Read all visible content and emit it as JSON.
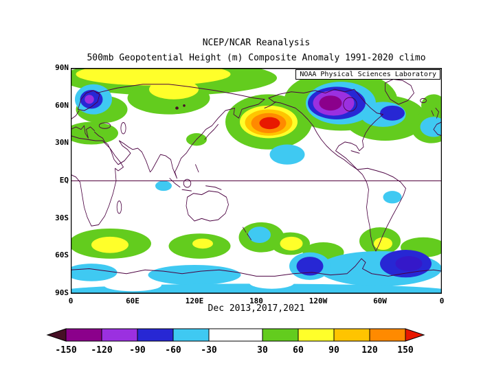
{
  "header": {
    "title_line1": "NCEP/NCAR Reanalysis",
    "title_line2": "500mb Geopotential Height (m) Composite Anomaly 1991-2020 climo"
  },
  "map": {
    "credit": "NOAA Physical Sciences Laboratory",
    "y_ticks": [
      "90N",
      "60N",
      "30N",
      "EQ",
      "30S",
      "60S",
      "90S"
    ],
    "x_ticks": [
      "0",
      "60E",
      "120E",
      "180",
      "120W",
      "60W",
      "0"
    ],
    "caption": "Dec 2013,2017,2021",
    "coastline_color": "#4a0040",
    "equator_color": "#50003c"
  },
  "colorbar": {
    "tick_labels": [
      "-150",
      "-120",
      "-90",
      "-60",
      "-30",
      "30",
      "60",
      "90",
      "120",
      "150"
    ],
    "arrow_left_color": "#471026",
    "arrow_right_color": "#e81800",
    "segments": [
      {
        "color": "#8b008b",
        "width": 52
      },
      {
        "color": "#9b30e0",
        "width": 52
      },
      {
        "color": "#2727d4",
        "width": 52
      },
      {
        "color": "#3fc9f2",
        "width": 52
      },
      {
        "color": "#ffffff",
        "width": 78
      },
      {
        "color": "#63cc1e",
        "width": 52
      },
      {
        "color": "#ffff2a",
        "width": 52
      },
      {
        "color": "#ffc400",
        "width": 52
      },
      {
        "color": "#ff8a00",
        "width": 52
      }
    ]
  },
  "chart_data": {
    "type": "heatmap",
    "variable": "500mb Geopotential Height Composite Anomaly",
    "units": "m",
    "climatology": "1991-2020",
    "composite_months": "Dec 2013,2017,2021",
    "source": "NCEP/NCAR Reanalysis",
    "lon_range": [
      0,
      360
    ],
    "lat_range": [
      -90,
      90
    ],
    "contour_levels": [
      -150,
      -120,
      -90,
      -60,
      -30,
      30,
      60,
      90,
      120,
      150
    ],
    "anomaly_centers": [
      {
        "region": "North Pacific (45N, 195E)",
        "value_m": 150
      },
      {
        "region": "Northern Canada (62N, 252E)",
        "value_m": -140
      },
      {
        "region": "Scandinavia (65N, 20E)",
        "value_m": -90
      },
      {
        "region": "Arctic Siberia band (85N, 80E)",
        "value_m": 75
      },
      {
        "region": "Weddell Sea / South Atlantic (66S, 328E)",
        "value_m": -100
      },
      {
        "region": "Amundsen Sea (68S, 232E)",
        "value_m": -65
      },
      {
        "region": "South Indian Ocean (51S, 38E)",
        "value_m": 65
      },
      {
        "region": "Southeast Pacific (50S, 214E)",
        "value_m": 65
      },
      {
        "region": "Patagonia (50S, 303E)",
        "value_m": 65
      },
      {
        "region": "Subtropical Central Pacific (21N, 210E)",
        "value_m": -35
      }
    ],
    "palette": {
      "green": "#63cc1e",
      "yellow": "#ffff2a",
      "amber": "#ffc400",
      "orange": "#ff8a00",
      "red": "#e81800",
      "cyan": "#3fc9f2",
      "blue": "#2727d4",
      "purple": "#9b30e0",
      "magenta": "#8b008b",
      "indigo": "#3518c9",
      "darkmaroon": "#471026",
      "white": "#ffffff"
    },
    "anomaly_blobs": [
      {
        "region": "arctic band",
        "color": "green",
        "lon": 95,
        "lat": 82,
        "rx": 105,
        "ry": 14
      },
      {
        "region": "siberia lobe",
        "color": "green",
        "lon": 95,
        "lat": 66,
        "rx": 40,
        "ry": 13
      },
      {
        "region": "arctic band core",
        "color": "yellow",
        "lon": 80,
        "lat": 85,
        "rx": 75,
        "ry": 9
      },
      {
        "region": "siberia lobe core",
        "color": "yellow",
        "lon": 100,
        "lat": 73,
        "rx": 24,
        "ry": 8
      },
      {
        "region": "europe north africa",
        "color": "green",
        "lon": 20,
        "lat": 38,
        "rx": 26,
        "ry": 9
      },
      {
        "region": "scandinavia surround",
        "color": "green",
        "lon": 30,
        "lat": 57,
        "rx": 25,
        "ry": 11
      },
      {
        "region": "east asia",
        "color": "green",
        "lon": 122,
        "lat": 33,
        "rx": 10,
        "ry": 5
      },
      {
        "region": "north america outer",
        "color": "green",
        "lon": 262,
        "lat": 64,
        "rx": 55,
        "ry": 24
      },
      {
        "region": "north atlantic",
        "color": "green",
        "lon": 305,
        "lat": 50,
        "rx": 40,
        "ry": 18
      },
      {
        "region": "europe west edge",
        "color": "green",
        "lon": 350,
        "lat": 43,
        "rx": 20,
        "ry": 13
      },
      {
        "region": "ne atlantic edge",
        "color": "green",
        "lon": 352,
        "lat": 60,
        "rx": 12,
        "ry": 9
      },
      {
        "region": "north pacific outer",
        "color": "green",
        "lon": 192,
        "lat": 47,
        "rx": 42,
        "ry": 22
      },
      {
        "region": "north pacific +60",
        "color": "yellow",
        "lon": 192,
        "lat": 47,
        "rx": 28,
        "ry": 13
      },
      {
        "region": "north pacific +90",
        "color": "amber",
        "lon": 192,
        "lat": 46.5,
        "rx": 23,
        "ry": 10.5
      },
      {
        "region": "north pacific +120",
        "color": "orange",
        "lon": 192,
        "lat": 46,
        "rx": 17,
        "ry": 8
      },
      {
        "region": "north pacific core",
        "color": "red",
        "lon": 193,
        "lat": 46,
        "rx": 10,
        "ry": 4.8
      },
      {
        "region": "scandinavia -30",
        "color": "cyan",
        "lon": 22,
        "lat": 65,
        "rx": 18,
        "ry": 12
      },
      {
        "region": "scandinavia -60",
        "color": "blue",
        "lon": 20,
        "lat": 65,
        "rx": 11,
        "ry": 7.5
      },
      {
        "region": "scandinavia core",
        "color": "purple",
        "lon": 18,
        "lat": 65,
        "rx": 4.5,
        "ry": 3.5
      },
      {
        "region": "canada -30",
        "color": "cyan",
        "lon": 262,
        "lat": 62,
        "rx": 34,
        "ry": 17
      },
      {
        "region": "greenland lobe -30",
        "color": "cyan",
        "lon": 303,
        "lat": 53,
        "rx": 22,
        "ry": 10
      },
      {
        "region": "greenland lobe -60",
        "color": "blue",
        "lon": 312,
        "lat": 54,
        "rx": 12,
        "ry": 6
      },
      {
        "region": "canada -60",
        "color": "blue",
        "lon": 258,
        "lat": 62,
        "rx": 28,
        "ry": 13
      },
      {
        "region": "canada -90",
        "color": "purple",
        "lon": 255,
        "lat": 62,
        "rx": 20,
        "ry": 10
      },
      {
        "region": "canada core",
        "color": "magenta",
        "lon": 252,
        "lat": 62,
        "rx": 11,
        "ry": 6
      },
      {
        "region": "siberia speck",
        "color": "darkmaroon",
        "lon": 103,
        "lat": 58,
        "rx": 1.6,
        "ry": 1.2
      },
      {
        "region": "siberia speck",
        "color": "darkmaroon",
        "lon": 110,
        "lat": 60,
        "rx": 1.2,
        "ry": 1
      },
      {
        "region": "subtropical pacific",
        "color": "cyan",
        "lon": 210,
        "lat": 21,
        "rx": 17,
        "ry": 8
      },
      {
        "region": "east atlantic",
        "color": "cyan",
        "lon": 352,
        "lat": 43,
        "rx": 13,
        "ry": 8
      },
      {
        "region": "indian ocean",
        "color": "cyan",
        "lon": 90,
        "lat": -4,
        "rx": 8,
        "ry": 4
      },
      {
        "region": "brazil",
        "color": "cyan",
        "lon": 312,
        "lat": -13,
        "rx": 9,
        "ry": 5
      },
      {
        "region": "south indian band",
        "color": "green",
        "lon": 38,
        "lat": -50,
        "rx": 40,
        "ry": 12
      },
      {
        "region": "south indian core",
        "color": "yellow",
        "lon": 38,
        "lat": -51,
        "rx": 18,
        "ry": 6.5
      },
      {
        "region": "south of australia",
        "color": "green",
        "lon": 125,
        "lat": -52,
        "rx": 30,
        "ry": 10
      },
      {
        "region": "south of australia core",
        "color": "yellow",
        "lon": 128,
        "lat": -50,
        "rx": 10,
        "ry": 4
      },
      {
        "region": "new zealand surround",
        "color": "green",
        "lon": 185,
        "lat": -45,
        "rx": 22,
        "ry": 12
      },
      {
        "region": "new zealand -30",
        "color": "cyan",
        "lon": 183,
        "lat": -43,
        "rx": 11,
        "ry": 6.5
      },
      {
        "region": "se pacific band",
        "color": "green",
        "lon": 213,
        "lat": -50,
        "rx": 19,
        "ry": 9
      },
      {
        "region": "se pacific core",
        "color": "yellow",
        "lon": 214,
        "lat": -50,
        "rx": 11,
        "ry": 5.5
      },
      {
        "region": "south pacific band",
        "color": "green",
        "lon": 245,
        "lat": -57,
        "rx": 20,
        "ry": 8
      },
      {
        "region": "patagonia",
        "color": "green",
        "lon": 300,
        "lat": -48,
        "rx": 20,
        "ry": 11
      },
      {
        "region": "patagonia core",
        "color": "yellow",
        "lon": 303,
        "lat": -50,
        "rx": 9,
        "ry": 5
      },
      {
        "region": "south atlantic band",
        "color": "green",
        "lon": 342,
        "lat": -53,
        "rx": 22,
        "ry": 8
      },
      {
        "region": "antarctic coast indian",
        "color": "cyan",
        "lon": 120,
        "lat": -75,
        "rx": 45,
        "ry": 8
      },
      {
        "region": "antarctic coast greenwich",
        "color": "cyan",
        "lon": 20,
        "lat": -73,
        "rx": 25,
        "ry": 7
      },
      {
        "region": "amundsen weddell broad",
        "color": "cyan",
        "lon": 300,
        "lat": -70,
        "rx": 60,
        "ry": 14
      },
      {
        "region": "amundsen ring",
        "color": "cyan",
        "lon": 232,
        "lat": -68,
        "rx": 20,
        "ry": 11
      },
      {
        "region": "amundsen -60",
        "color": "blue",
        "lon": 232,
        "lat": -68,
        "rx": 13,
        "ry": 7.5
      },
      {
        "region": "weddell -60",
        "color": "blue",
        "lon": 325,
        "lat": -66,
        "rx": 25,
        "ry": 11
      },
      {
        "region": "weddell core",
        "color": "indigo",
        "lon": 328,
        "lat": -66,
        "rx": 13,
        "ry": 6
      },
      {
        "region": "antarctic interior strip",
        "color": "cyan",
        "lon": 180,
        "lat": -88,
        "rx": 190,
        "ry": 6
      },
      {
        "region": "ross white",
        "color": "white",
        "lon": 195,
        "lat": -81,
        "rx": 22,
        "ry": 5
      },
      {
        "region": "east antarctic white",
        "color": "white",
        "lon": 60,
        "lat": -83,
        "rx": 28,
        "ry": 5
      }
    ]
  }
}
